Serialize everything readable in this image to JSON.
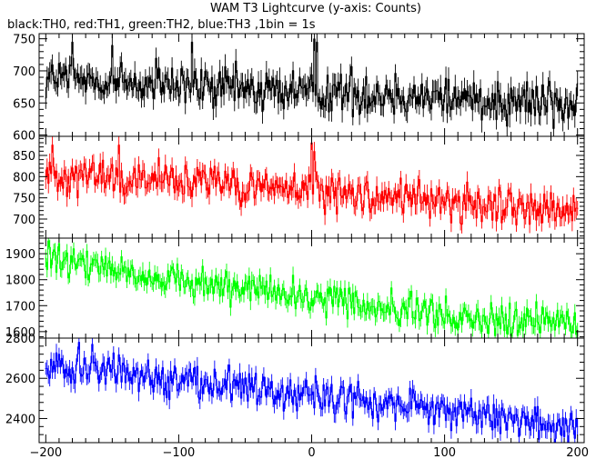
{
  "chart_data": {
    "type": "line",
    "title": "WAM T3 Lightcurve (y-axis: Counts)",
    "subtitle": "black:TH0, red:TH1, green:TH2, blue:TH3 ,1bin = 1s",
    "xlim": [
      -205,
      205
    ],
    "x_ticks": [
      -200,
      -100,
      0,
      100,
      200
    ],
    "x_tick_labels": [
      "−200",
      "−100",
      "0",
      "100",
      "200"
    ],
    "bin_seconds": 1,
    "grid": false,
    "panels": [
      {
        "name": "TH0",
        "color": "#000000",
        "ylim": [
          598,
          758
        ],
        "y_ticks": [
          600,
          650,
          700,
          750
        ],
        "trend": [
          [
            -200,
            690
          ],
          [
            -100,
            675
          ],
          [
            0,
            668
          ],
          [
            100,
            660
          ],
          [
            200,
            650
          ]
        ],
        "noise": 22,
        "spikes": [
          [
            -180,
            745
          ],
          [
            -150,
            740
          ],
          [
            -90,
            745
          ],
          [
            2,
            750
          ],
          [
            4,
            745
          ]
        ]
      },
      {
        "name": "TH1",
        "color": "#ff0000",
        "ylim": [
          655,
          895
        ],
        "y_ticks": [
          700,
          750,
          800,
          850
        ],
        "trend": [
          [
            -200,
            810
          ],
          [
            -100,
            785
          ],
          [
            0,
            770
          ],
          [
            100,
            740
          ],
          [
            200,
            715
          ]
        ],
        "noise": 28,
        "spikes": [
          [
            -195,
            875
          ],
          [
            -145,
            875
          ],
          [
            0,
            880
          ],
          [
            2,
            860
          ]
        ]
      },
      {
        "name": "TH2",
        "color": "#00ff00",
        "ylim": [
          1575,
          1960
        ],
        "y_ticks": [
          1600,
          1700,
          1800,
          1900
        ],
        "trend": [
          [
            -200,
            1870
          ],
          [
            -100,
            1800
          ],
          [
            0,
            1730
          ],
          [
            100,
            1660
          ],
          [
            200,
            1630
          ]
        ],
        "noise": 40,
        "spikes": [
          [
            -198,
            1950
          ],
          [
            -190,
            1940
          ]
        ]
      },
      {
        "name": "TH3",
        "color": "#0000ff",
        "ylim": [
          2280,
          2800
        ],
        "y_ticks": [
          2400,
          2600,
          2800
        ],
        "trend": [
          [
            -200,
            2670
          ],
          [
            -100,
            2600
          ],
          [
            0,
            2510
          ],
          [
            100,
            2440
          ],
          [
            200,
            2360
          ]
        ],
        "noise": 55,
        "spikes": [
          [
            -175,
            2780
          ],
          [
            -165,
            2770
          ]
        ]
      }
    ]
  }
}
